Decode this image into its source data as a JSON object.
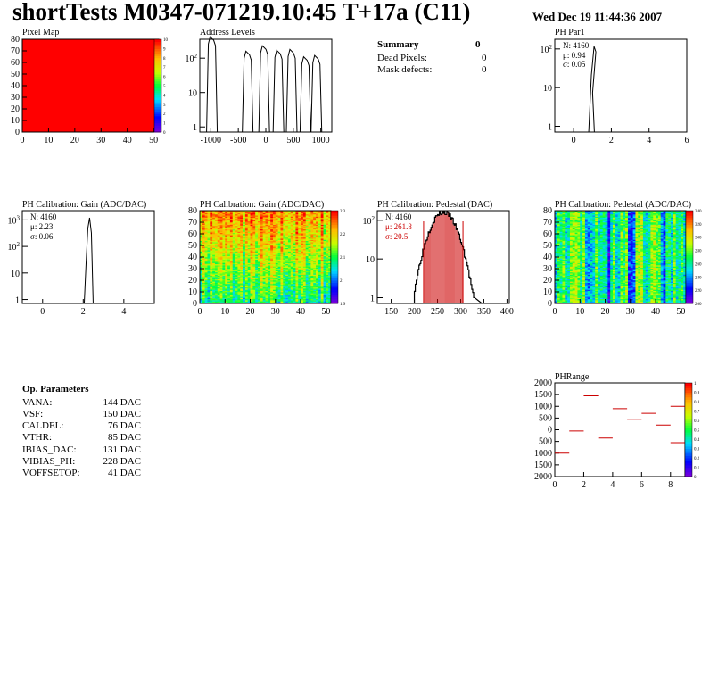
{
  "header": {
    "title": "shortTests M0347-071219.10:45 T+17a (C11)",
    "timestamp": "Wed Dec 19 11:44:36 2007"
  },
  "summary": {
    "heading": "Summary",
    "heading_value": "0",
    "rows": [
      {
        "label": "Dead Pixels:",
        "value": "0"
      },
      {
        "label": "Mask defects:",
        "value": "0"
      }
    ]
  },
  "op_params": {
    "heading": "Op. Parameters",
    "rows": [
      {
        "label": "VANA:",
        "value": "144 DAC"
      },
      {
        "label": "VSF:",
        "value": "150 DAC"
      },
      {
        "label": "CALDEL:",
        "value": "76 DAC"
      },
      {
        "label": "VTHR:",
        "value": "85 DAC"
      },
      {
        "label": "IBIAS_DAC:",
        "value": "131 DAC"
      },
      {
        "label": "VIBIAS_PH:",
        "value": "228 DAC"
      },
      {
        "label": "VOFFSETOP:",
        "value": "41 DAC"
      }
    ]
  },
  "chart_data": [
    {
      "id": "pixel-map",
      "type": "heatmap",
      "title": "Pixel Map",
      "xlim": [
        0,
        52
      ],
      "ylim": [
        0,
        80
      ],
      "xticks": [
        "0",
        "10",
        "20",
        "30",
        "40",
        "50"
      ],
      "yticks": [
        "0",
        "10",
        "20",
        "30",
        "40",
        "50",
        "60",
        "70",
        "80"
      ],
      "zticks": [
        "0",
        "1",
        "2",
        "3",
        "4",
        "5",
        "6",
        "7",
        "8",
        "9",
        "10"
      ],
      "zlim": [
        0,
        10
      ],
      "fill_value": 10,
      "fill_color": "#ff0000"
    },
    {
      "id": "address-levels",
      "type": "line",
      "title": "Address Levels",
      "xlim": [
        -1200,
        1200
      ],
      "xticks": [
        "-1000",
        "-500",
        "0",
        "500",
        "1000"
      ],
      "yscale": "log",
      "yticks": [
        "1",
        "10",
        "10^2"
      ],
      "peaks": [
        {
          "x": -980,
          "y": 420
        },
        {
          "x": -330,
          "y": 160
        },
        {
          "x": -30,
          "y": 230
        },
        {
          "x": 230,
          "y": 170
        },
        {
          "x": 470,
          "y": 180
        },
        {
          "x": 720,
          "y": 110
        },
        {
          "x": 920,
          "y": 120
        }
      ]
    },
    {
      "id": "ph-par1",
      "type": "line",
      "title": "PH Par1",
      "xlim": [
        -1,
        6
      ],
      "xticks": [
        "0",
        "2",
        "4",
        "6"
      ],
      "yscale": "log",
      "yticks": [
        "1",
        "10",
        "10^2"
      ],
      "stats": {
        "N": "4160",
        "mu": "0.94",
        "sigma": "0.05"
      },
      "stat_labels": {
        "N": "N: 4160",
        "mu": "μ: 0.94",
        "sigma": "σ: 0.05"
      }
    },
    {
      "id": "ph-gain-1d",
      "type": "line",
      "title": "PH Calibration: Gain (ADC/DAC)",
      "xlim": [
        -1,
        5.5
      ],
      "xticks": [
        "0",
        "2",
        "4"
      ],
      "yscale": "log",
      "yticks": [
        "1",
        "10",
        "10^2",
        "10^3"
      ],
      "stat_labels": {
        "N": "N: 4160",
        "mu": "μ: 2.23",
        "sigma": "σ: 0.06"
      }
    },
    {
      "id": "ph-gain-map",
      "type": "heatmap",
      "title": "PH Calibration: Gain (ADC/DAC)",
      "xlim": [
        0,
        52
      ],
      "ylim": [
        0,
        80
      ],
      "xticks": [
        "0",
        "10",
        "20",
        "30",
        "40",
        "50"
      ],
      "yticks": [
        "0",
        "10",
        "20",
        "30",
        "40",
        "50",
        "60",
        "70",
        "80"
      ],
      "zticks": [
        "1.9",
        "2",
        "2.1",
        "2.2",
        "2.3"
      ],
      "zlim": [
        1.85,
        2.35
      ]
    },
    {
      "id": "ph-pedestal-1d",
      "type": "bar",
      "title": "PH Calibration: Pedestal (DAC)",
      "xlim": [
        120,
        405
      ],
      "xticks": [
        "150",
        "200",
        "250",
        "300",
        "350",
        "400"
      ],
      "yscale": "log",
      "yticks": [
        "1",
        "10",
        "10^2"
      ],
      "stat_labels": {
        "N": "N: 4160",
        "mu": "μ: 261.8",
        "sigma": "σ: 20.5"
      },
      "mean": 261.8,
      "sigma": 20.5,
      "count": 4160,
      "cut_lines": [
        220,
        305
      ]
    },
    {
      "id": "ph-pedestal-map",
      "type": "heatmap",
      "title": "PH Calibration: Pedestal (ADC/DAC)",
      "xlim": [
        0,
        52
      ],
      "ylim": [
        0,
        80
      ],
      "xticks": [
        "0",
        "10",
        "20",
        "30",
        "40",
        "50"
      ],
      "yticks": [
        "0",
        "10",
        "20",
        "30",
        "40",
        "50",
        "60",
        "70",
        "80"
      ],
      "zticks": [
        "200",
        "220",
        "240",
        "260",
        "280",
        "300",
        "320",
        "340"
      ],
      "zlim": [
        190,
        345
      ]
    },
    {
      "id": "ph-range",
      "type": "scatter",
      "title": "PHRange",
      "xlim": [
        0,
        9
      ],
      "ylim": [
        -2000,
        2000
      ],
      "xticks": [
        "0",
        "2",
        "4",
        "6",
        "8"
      ],
      "yticks": [
        "2000",
        "1500",
        "1000",
        "500",
        "0",
        "500",
        "1000",
        "1500",
        "2000"
      ],
      "zticks": [
        "0",
        "0.1",
        "0.2",
        "0.3",
        "0.4",
        "0.5",
        "0.6",
        "0.7",
        "0.8",
        "0.9",
        "1"
      ],
      "segments": [
        {
          "x": 0,
          "y": -1000
        },
        {
          "x": 1,
          "y": -50
        },
        {
          "x": 2,
          "y": 1450
        },
        {
          "x": 3,
          "y": -350
        },
        {
          "x": 4,
          "y": 900
        },
        {
          "x": 5,
          "y": 450
        },
        {
          "x": 6,
          "y": 700
        },
        {
          "x": 7,
          "y": 200
        },
        {
          "x": 8,
          "y": 1000
        },
        {
          "x": 8,
          "y": -550
        }
      ],
      "segment_color": "#cc0000"
    }
  ]
}
